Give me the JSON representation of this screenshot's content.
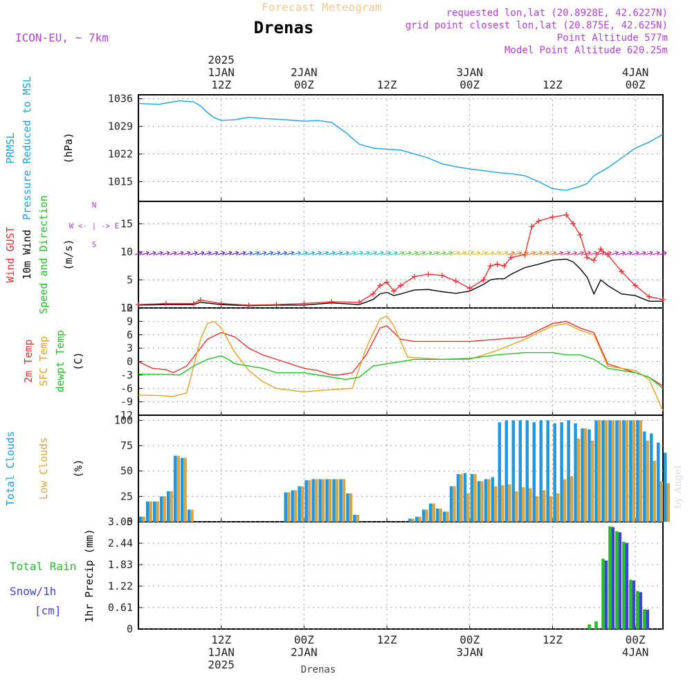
{
  "header": {
    "subtitle": "Forecast Meteogram",
    "title": "Drenas",
    "model": "ICON-EU, ~ 7km",
    "requested": "requested lon,lat (20.8928E, 42.6227N)",
    "grid": "grid point closest lon,lat (20.875E, 42.625N)",
    "point_alt": "Point Altitude 577m",
    "model_alt": "Model Point Altitude 620.25m",
    "footer": "Drenas",
    "watermark": "by Angel"
  },
  "time_axis": {
    "start": "2025-01-01 00Z",
    "step_hours": 1,
    "major_ticks": [
      {
        "label_top": [
          "2025",
          "1JAN",
          "12Z"
        ],
        "label_bottom": [
          "12Z",
          "1JAN",
          "2025"
        ],
        "hour": 12
      },
      {
        "label_top": [
          "2JAN",
          "00Z"
        ],
        "label_bottom": [
          "00Z",
          "2JAN"
        ],
        "hour": 24
      },
      {
        "label_top": [
          "12Z"
        ],
        "label_bottom": [
          "12Z"
        ],
        "hour": 36
      },
      {
        "label_top": [
          "3JAN",
          "00Z"
        ],
        "label_bottom": [
          "00Z",
          "3JAN"
        ],
        "hour": 48
      },
      {
        "label_top": [
          "12Z"
        ],
        "label_bottom": [
          "12Z"
        ],
        "hour": 60
      },
      {
        "label_top": [
          "4JAN",
          "00Z"
        ],
        "label_bottom": [
          "00Z",
          "4JAN"
        ],
        "hour": 72
      }
    ]
  },
  "chart_data": [
    {
      "type": "line",
      "panel": "pressure",
      "ylabel_lines": [
        "PRMSL",
        "Pressure Reduced to MSL"
      ],
      "unit": "(hPa)",
      "ytick_labels": [
        "1015",
        "1022",
        "1029",
        "1036"
      ],
      "ylim": [
        1010,
        1037
      ],
      "series": [
        {
          "color": "#1aa0e6",
          "x": [
            0,
            3,
            6,
            8,
            9,
            10,
            11,
            12,
            14,
            16,
            18,
            20,
            22,
            24,
            26,
            28,
            30,
            32,
            34,
            36,
            38,
            40,
            42,
            44,
            46,
            48,
            50,
            52,
            54,
            56,
            58,
            60,
            62,
            64,
            65,
            66,
            68,
            70,
            72,
            74,
            76
          ],
          "values": [
            1034.8,
            1034.6,
            1035.5,
            1035.2,
            1034.2,
            1032.5,
            1031.2,
            1030.5,
            1030.7,
            1031.3,
            1031.0,
            1030.8,
            1030.6,
            1030.3,
            1030.5,
            1030.0,
            1027.5,
            1024.5,
            1023.5,
            1023.2,
            1023.0,
            1022.0,
            1021.0,
            1019.5,
            1018.8,
            1018.2,
            1017.8,
            1017.3,
            1017.0,
            1016.5,
            1015.0,
            1013.2,
            1012.8,
            1013.8,
            1014.5,
            1016.5,
            1018.5,
            1021.0,
            1023.5,
            1025.0,
            1027.0
          ]
        }
      ],
      "grid": true
    },
    {
      "type": "line",
      "panel": "wind",
      "ylabel_lines": [
        "Wind GUST",
        "10m Wind",
        "Speed and Direction"
      ],
      "unit": "(m/s)",
      "compass": [
        "N",
        "W <- | -> E",
        "S"
      ],
      "ytick_labels": [
        "0",
        "5",
        "10",
        "15"
      ],
      "ylim": [
        0,
        19
      ],
      "series": [
        {
          "color": "#000000",
          "x": [
            0,
            4,
            8,
            9,
            12,
            16,
            20,
            24,
            28,
            32,
            34,
            35,
            36,
            37,
            38,
            40,
            42,
            44,
            46,
            48,
            50,
            51,
            52,
            53,
            54,
            56,
            58,
            60,
            62,
            63,
            64,
            65,
            66,
            67,
            68,
            70,
            72,
            74,
            76
          ],
          "values": [
            0.5,
            0.6,
            0.6,
            1.0,
            0.6,
            0.4,
            0.5,
            0.5,
            0.9,
            0.6,
            1.5,
            2.5,
            2.8,
            2.2,
            2.5,
            3.2,
            3.3,
            2.9,
            2.6,
            3.0,
            4.2,
            5.0,
            5.2,
            5.2,
            6.0,
            7.2,
            7.8,
            8.5,
            8.7,
            8.2,
            7.0,
            5.5,
            2.5,
            5.0,
            4.0,
            2.5,
            2.2,
            1.2,
            1.2
          ]
        },
        {
          "color": "#e83030",
          "marker": "+",
          "x": [
            0,
            4,
            8,
            9,
            12,
            16,
            20,
            24,
            28,
            32,
            34,
            35,
            36,
            37,
            38,
            40,
            42,
            44,
            46,
            48,
            50,
            51,
            52,
            53,
            54,
            56,
            57,
            58,
            60,
            62,
            63,
            64,
            65,
            66,
            67,
            68,
            70,
            72,
            74,
            76
          ],
          "values": [
            0.6,
            0.8,
            0.8,
            1.4,
            0.8,
            0.5,
            0.6,
            0.8,
            1.1,
            1.0,
            2.5,
            4.0,
            4.6,
            3.0,
            4.0,
            5.6,
            6.0,
            5.8,
            4.8,
            3.5,
            5.0,
            7.5,
            7.8,
            7.5,
            9.0,
            9.5,
            14.5,
            15.5,
            16.2,
            16.6,
            15.0,
            13.0,
            9.0,
            8.5,
            10.5,
            9.5,
            6.5,
            4.0,
            2.0,
            1.5
          ]
        }
      ],
      "wind_direction_note": "arrows: W to E",
      "grid": true
    },
    {
      "type": "line",
      "panel": "temperature",
      "ylabel_lines": [
        "2m Temp",
        "SFC Temp",
        "dewpt Temp"
      ],
      "unit": "(C)",
      "ytick_labels": [
        "-12",
        "-9",
        "-6",
        "-3",
        "0",
        "3",
        "6",
        "9",
        "12"
      ],
      "ylim": [
        -12,
        12
      ],
      "series": [
        {
          "color": "#e83030",
          "x": [
            0,
            2,
            4,
            5,
            7,
            9,
            10,
            12,
            14,
            16,
            18,
            20,
            24,
            26,
            28,
            29,
            31,
            33,
            35,
            36,
            38,
            40,
            44,
            48,
            52,
            56,
            60,
            62,
            64,
            65,
            66,
            68,
            70,
            72,
            74,
            76
          ],
          "values": [
            0.0,
            -1.5,
            -1.8,
            -2.5,
            -1.0,
            3.0,
            5.0,
            6.5,
            5.5,
            3.0,
            1.5,
            0.5,
            -1.5,
            -2.0,
            -3.0,
            -3.0,
            -2.5,
            1.5,
            7.5,
            8.0,
            5.0,
            4.5,
            4.5,
            4.5,
            5.0,
            5.5,
            8.5,
            9.0,
            7.5,
            7.0,
            6.5,
            -0.5,
            -1.5,
            -2.5,
            -3.5,
            -5.5
          ]
        },
        {
          "color": "#e8a020",
          "x": [
            0,
            3,
            5,
            7,
            9,
            10,
            11,
            12,
            14,
            16,
            18,
            20,
            24,
            26,
            28,
            29,
            31,
            33,
            35,
            36,
            37,
            39,
            44,
            48,
            52,
            56,
            60,
            62,
            64,
            65,
            66,
            68,
            70,
            72,
            74,
            76
          ],
          "values": [
            -7.5,
            -7.6,
            -7.8,
            -7.0,
            5.0,
            8.5,
            9.0,
            7.5,
            2.0,
            -2.0,
            -4.5,
            -6.0,
            -6.8,
            -6.5,
            -6.3,
            -6.2,
            -6.0,
            3.0,
            9.5,
            10.2,
            8.0,
            1.0,
            0.5,
            0.5,
            2.5,
            5.0,
            8.0,
            8.5,
            7.0,
            6.5,
            6.0,
            -1.0,
            -1.5,
            -2.0,
            -4.0,
            -11.0
          ]
        },
        {
          "color": "#20c020",
          "x": [
            0,
            4,
            6,
            8,
            10,
            12,
            13,
            14,
            16,
            18,
            20,
            22,
            24,
            26,
            28,
            30,
            32,
            34,
            36,
            40,
            44,
            48,
            52,
            56,
            58,
            60,
            62,
            64,
            65,
            66,
            68,
            70,
            72,
            74,
            76
          ],
          "values": [
            -2.8,
            -2.9,
            -3.0,
            -1.0,
            0.5,
            1.3,
            0.5,
            -0.5,
            -1.0,
            -1.5,
            -2.5,
            -2.5,
            -2.5,
            -3.0,
            -3.5,
            -4.0,
            -3.5,
            -1.0,
            -0.5,
            0.5,
            0.5,
            0.7,
            1.5,
            2.0,
            2.0,
            2.0,
            1.5,
            1.5,
            1.0,
            0.5,
            -1.5,
            -2.0,
            -2.5,
            -3.5,
            -6.0
          ]
        }
      ],
      "grid": true
    },
    {
      "type": "bar",
      "panel": "clouds",
      "ylabel_lines": [
        "Total Clouds",
        "Low Clouds"
      ],
      "unit": "(%)",
      "ytick_labels": [
        "0",
        "25",
        "50",
        "75",
        "100"
      ],
      "ylim": [
        0,
        105
      ],
      "x": [
        0,
        1,
        2,
        3,
        4,
        5,
        6,
        7,
        8,
        9,
        10,
        11,
        12,
        13,
        14,
        15,
        16,
        17,
        18,
        19,
        20,
        21,
        22,
        23,
        24,
        25,
        26,
        27,
        28,
        29,
        30,
        31,
        32,
        33,
        34,
        35,
        36,
        37,
        38,
        39,
        40,
        41,
        42,
        43,
        44,
        45,
        46,
        47,
        48,
        49,
        50,
        51,
        52,
        53,
        54,
        55,
        56,
        57,
        58,
        59,
        60,
        61,
        62,
        63,
        64,
        65,
        66,
        67,
        68,
        69,
        70,
        71,
        72,
        73,
        74,
        75,
        76
      ],
      "series": [
        {
          "name": "Total Clouds",
          "color": "#1a9ae6",
          "values": [
            5,
            20,
            20,
            25,
            30,
            65,
            63,
            12,
            0,
            0,
            0,
            0,
            0,
            0,
            0,
            0,
            0,
            0,
            0,
            0,
            0,
            29,
            31,
            35,
            41,
            42,
            42,
            42,
            42,
            42,
            28,
            7,
            0,
            0,
            0,
            0,
            0,
            0,
            0,
            3,
            5,
            12,
            18,
            13,
            10,
            35,
            47,
            48,
            47,
            40,
            42,
            44,
            98,
            100,
            100,
            100,
            100,
            98,
            100,
            100,
            97,
            98,
            100,
            97,
            92,
            91,
            100,
            100,
            100,
            100,
            100,
            100,
            100,
            89,
            87,
            78,
            68
          ]
        },
        {
          "name": "Low Clouds",
          "color": "#d9a441",
          "values": [
            5,
            20,
            20,
            25,
            30,
            65,
            63,
            12,
            0,
            0,
            0,
            0,
            0,
            0,
            0,
            0,
            0,
            0,
            0,
            0,
            0,
            29,
            31,
            35,
            41,
            42,
            42,
            42,
            42,
            42,
            28,
            7,
            0,
            0,
            0,
            0,
            0,
            0,
            0,
            3,
            5,
            12,
            18,
            13,
            10,
            35,
            47,
            28,
            47,
            40,
            42,
            35,
            36,
            37,
            30,
            34,
            33,
            25,
            31,
            25,
            28,
            42,
            45,
            82,
            92,
            80,
            100,
            100,
            100,
            100,
            100,
            100,
            100,
            80,
            60,
            40,
            38
          ]
        }
      ],
      "grid": true
    },
    {
      "type": "bar",
      "panel": "precip",
      "ylabel_lines": [
        "Total Rain",
        "Snow/1h",
        "[cm]"
      ],
      "unit": "1hr Precip (mm)",
      "ytick_labels": [
        "0",
        "0.61",
        "1.22",
        "1.83",
        "2.44",
        "3.05"
      ],
      "ylim": [
        0,
        3.05
      ],
      "x": [
        65,
        66,
        67,
        68,
        69,
        70,
        71,
        72,
        73
      ],
      "series": [
        {
          "name": "Total Rain",
          "color": "#20c020",
          "values": [
            0.13,
            0.22,
            2.0,
            2.92,
            2.78,
            2.48,
            1.4,
            1.08,
            0.56
          ]
        },
        {
          "name": "Snow/1h",
          "color": "#4040e0",
          "values": [
            0,
            0,
            1.95,
            2.9,
            2.75,
            2.45,
            1.38,
            1.05,
            0.55
          ]
        }
      ],
      "grid": true
    }
  ]
}
